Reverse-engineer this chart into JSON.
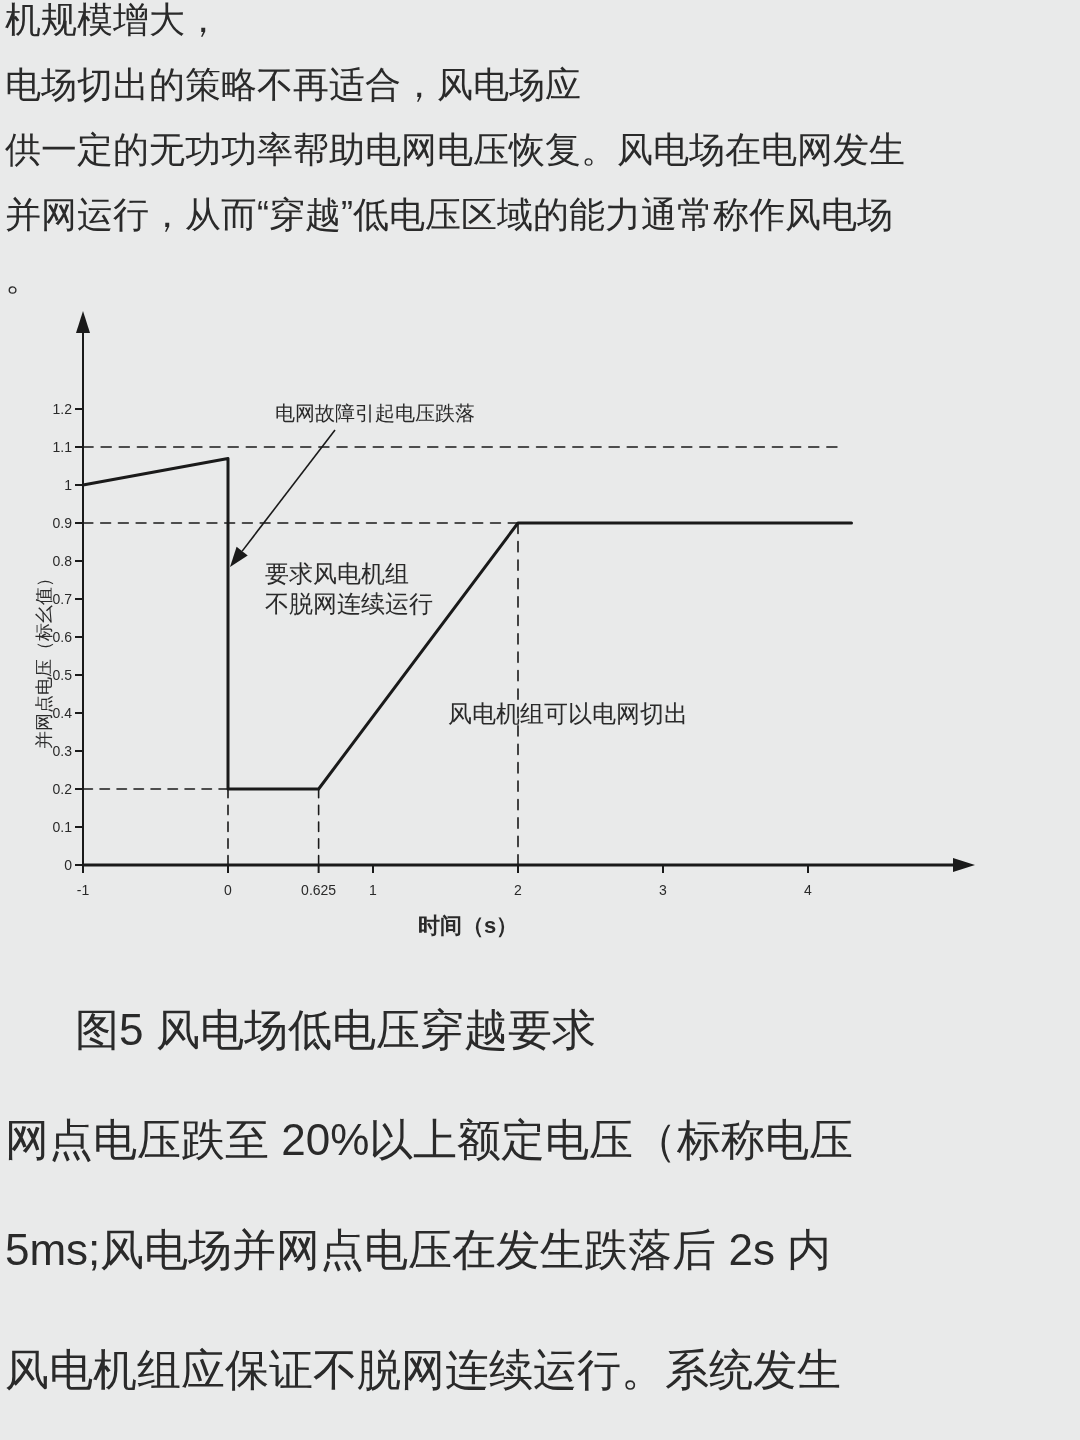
{
  "chart_data": {
    "type": "line",
    "title": "图5 风电场低电压穿越要求",
    "xlabel": "时间（s）",
    "ylabel": "并网点电压（标幺值）",
    "xlim": [
      -1,
      5
    ],
    "ylim": [
      0,
      1.4
    ],
    "xticks": [
      -1,
      0,
      0.625,
      1,
      2,
      3,
      4
    ],
    "yticks": [
      0,
      0.1,
      0.2,
      0.3,
      0.4,
      0.5,
      0.6,
      0.7,
      0.8,
      0.9,
      1,
      1.1,
      1.2
    ],
    "series": [
      {
        "color": "#1a1a1a",
        "line_style": "solid",
        "x": [
          -1,
          0,
          0,
          0.625,
          2,
          4.3
        ],
        "values": [
          1,
          1.07,
          0.2,
          0.2,
          0.9,
          0.9
        ]
      },
      {
        "color": "#1a1a1a",
        "line_style": "dashed",
        "x": [
          -1,
          4.2
        ],
        "values": [
          1.1,
          1.1
        ]
      },
      {
        "color": "#1a1a1a",
        "line_style": "dashed",
        "x": [
          -1,
          2
        ],
        "values": [
          0.9,
          0.9
        ]
      },
      {
        "color": "#1a1a1a",
        "line_style": "dashed",
        "x": [
          -1,
          0
        ],
        "values": [
          0.2,
          0.2
        ]
      },
      {
        "color": "#1a1a1a",
        "line_style": "dashed",
        "x": [
          0,
          0
        ],
        "values": [
          0,
          0.2
        ]
      },
      {
        "color": "#1a1a1a",
        "line_style": "dashed",
        "x": [
          0.625,
          0.625
        ],
        "values": [
          0,
          0.2
        ]
      },
      {
        "color": "#1a1a1a",
        "line_style": "dashed",
        "x": [
          2,
          2
        ],
        "values": [
          0,
          0.9
        ]
      }
    ],
    "annotations": [
      "电网故障引起电压跌落",
      "要求风电机组",
      "不脱网连续运行",
      "风电机组可以电网切出",
      "机规模增大，",
      "电场切出的策略不再适合，风电场应",
      "供一定的无功功率帮助电网电压恢复。风电场在电网发生",
      "并网运行，从而“穿越”低电压区域的能力通常称作风电场",
      "。",
      "网点电压跌至 20%以上额定电压（标称电压",
      "5ms;风电场并网点电压在发生跌落后 2s 内",
      "风电机组应保证不脱网连续运行。系统发生"
    ]
  }
}
